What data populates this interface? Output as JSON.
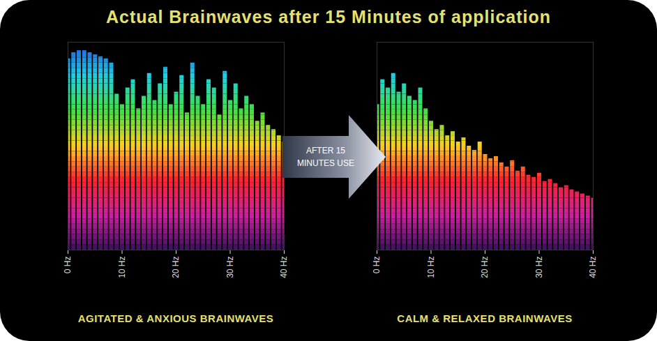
{
  "title": "Actual Brainwaves after 15 Minutes of application",
  "annotation": "AFTER 15 MINUTES USE",
  "chart_data": [
    {
      "type": "bar",
      "title": "AGITATED & ANXIOUS BRAINWAVES",
      "x": [
        0,
        1,
        2,
        3,
        4,
        5,
        6,
        7,
        8,
        9,
        10,
        11,
        12,
        13,
        14,
        15,
        16,
        17,
        18,
        19,
        20,
        21,
        22,
        23,
        24,
        25,
        26,
        27,
        28,
        29,
        30,
        31,
        32,
        33,
        34,
        35,
        36,
        37,
        38,
        39,
        40
      ],
      "values": [
        92,
        95,
        96,
        96,
        95,
        94,
        93,
        92,
        90,
        75,
        70,
        78,
        82,
        68,
        74,
        85,
        72,
        80,
        88,
        70,
        76,
        84,
        66,
        90,
        74,
        70,
        82,
        78,
        65,
        86,
        72,
        80,
        68,
        74,
        70,
        62,
        66,
        60,
        58,
        55,
        52
      ],
      "xlim": [
        0,
        40
      ],
      "xticks": [
        {
          "value": 0,
          "label": "0 Hz"
        },
        {
          "value": 10,
          "label": "10 Hz"
        },
        {
          "value": 20,
          "label": "20 Hz"
        },
        {
          "value": 30,
          "label": "30 Hz"
        },
        {
          "value": 40,
          "label": "40 Hz"
        }
      ],
      "ylim": [
        0,
        100
      ],
      "tick_labels": "x"
    },
    {
      "type": "bar",
      "title": "CALM & RELAXED BRAINWAVES",
      "x": [
        0,
        1,
        2,
        3,
        4,
        5,
        6,
        7,
        8,
        9,
        10,
        11,
        12,
        13,
        14,
        15,
        16,
        17,
        18,
        19,
        20,
        21,
        22,
        23,
        24,
        25,
        26,
        27,
        28,
        29,
        30,
        31,
        32,
        33,
        34,
        35,
        36,
        37,
        38,
        39,
        40
      ],
      "values": [
        70,
        82,
        78,
        85,
        76,
        80,
        74,
        72,
        78,
        68,
        62,
        58,
        60,
        55,
        57,
        52,
        54,
        50,
        48,
        52,
        46,
        44,
        45,
        42,
        40,
        43,
        38,
        40,
        36,
        35,
        37,
        33,
        34,
        32,
        30,
        31,
        29,
        28,
        27,
        26,
        25
      ],
      "xlim": [
        0,
        40
      ],
      "xticks": [
        {
          "value": 0,
          "label": "0 Hz"
        },
        {
          "value": 10,
          "label": "10 Hz"
        },
        {
          "value": 20,
          "label": "20 Hz"
        },
        {
          "value": 30,
          "label": "30 Hz"
        },
        {
          "value": 40,
          "label": "40 Hz"
        }
      ],
      "ylim": [
        0,
        100
      ],
      "tick_labels": "x"
    }
  ]
}
